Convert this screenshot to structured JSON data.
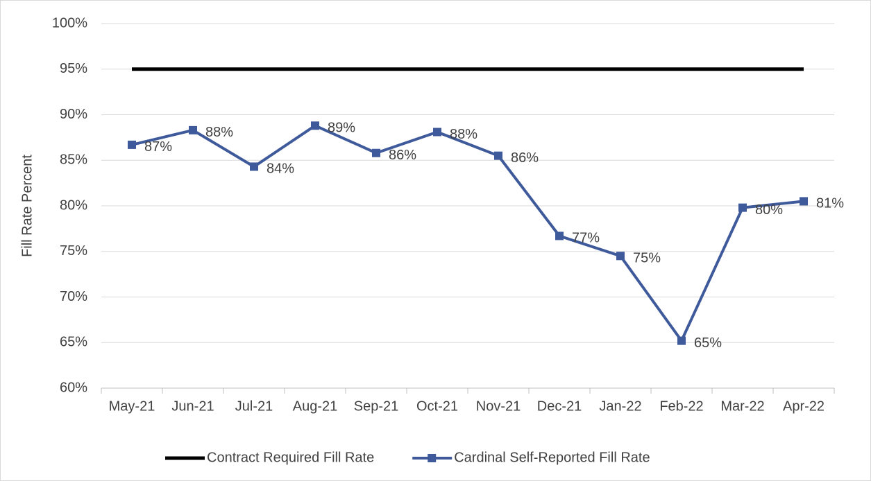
{
  "chart_data": {
    "type": "line",
    "y_axis_label": "Fill Rate Percent",
    "categories": [
      "May-21",
      "Jun-21",
      "Jul-21",
      "Aug-21",
      "Sep-21",
      "Oct-21",
      "Nov-21",
      "Dec-21",
      "Jan-22",
      "Feb-22",
      "Mar-22",
      "Apr-22"
    ],
    "series": [
      {
        "name": "Contract Required Fill Rate",
        "color": "#000000",
        "marker": false,
        "values": [
          95,
          95,
          95,
          95,
          95,
          95,
          95,
          95,
          95,
          95,
          95,
          95
        ]
      },
      {
        "name": "Cardinal Self-Reported Fill Rate",
        "color": "#3f5a9b",
        "marker": true,
        "values": [
          86.7,
          88.3,
          84.3,
          88.8,
          85.8,
          88.1,
          85.5,
          76.7,
          74.5,
          65.2,
          79.8,
          80.5
        ],
        "value_labels": [
          "87%",
          "88%",
          "84%",
          "89%",
          "86%",
          "88%",
          "86%",
          "77%",
          "75%",
          "65%",
          "80%",
          "81%"
        ]
      }
    ],
    "ylim": [
      60,
      100
    ],
    "yticks": [
      {
        "value": 60,
        "label": "60%"
      },
      {
        "value": 65,
        "label": "65%"
      },
      {
        "value": 70,
        "label": "70%"
      },
      {
        "value": 75,
        "label": "75%"
      },
      {
        "value": 80,
        "label": "80%"
      },
      {
        "value": 85,
        "label": "85%"
      },
      {
        "value": 90,
        "label": "90%"
      },
      {
        "value": 95,
        "label": "95%"
      },
      {
        "value": 100,
        "label": "100%"
      }
    ],
    "grid": true,
    "legend": "bottom"
  }
}
